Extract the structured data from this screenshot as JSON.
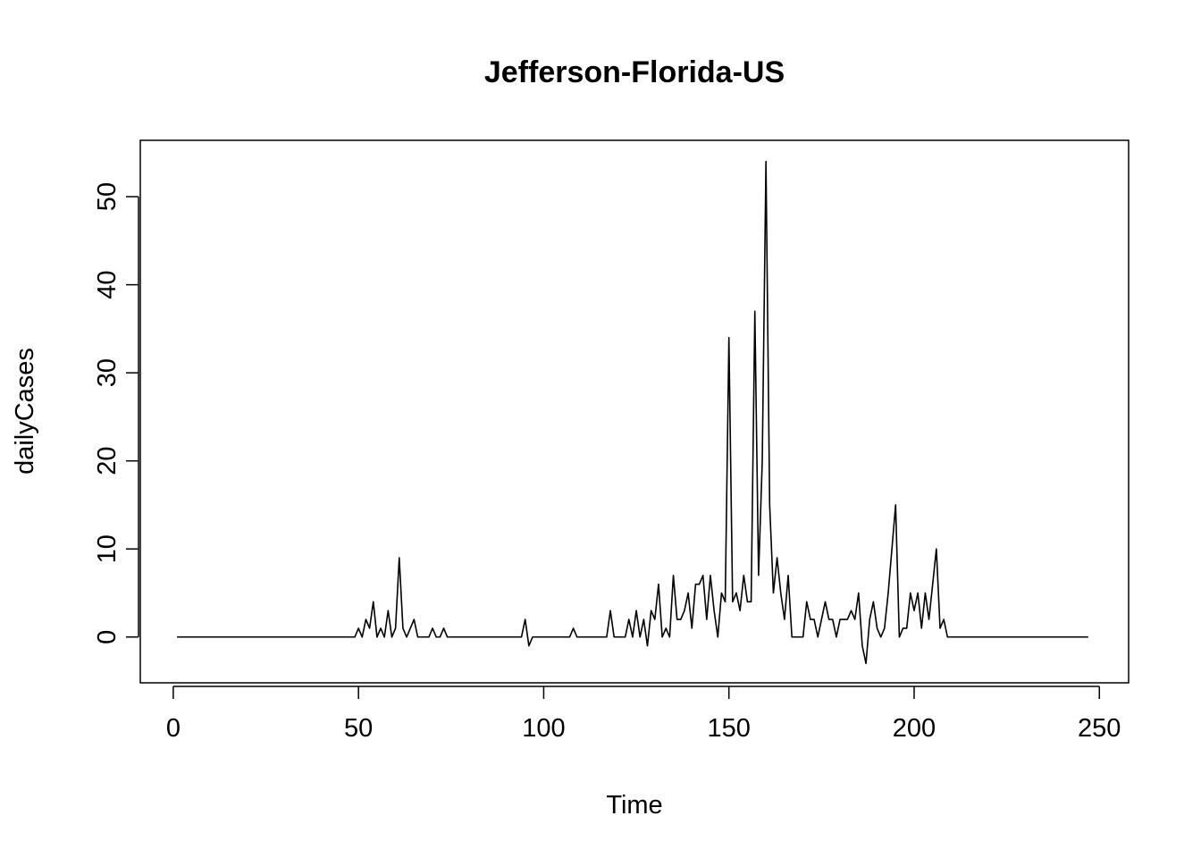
{
  "chart_data": {
    "type": "line",
    "title": "Jefferson-Florida-US",
    "xlabel": "Time",
    "ylabel": "dailyCases",
    "xlim": [
      -8.9,
      257.9
    ],
    "ylim": [
      -5.2,
      56.4
    ],
    "x_ticks": [
      0,
      50,
      100,
      150,
      200,
      250
    ],
    "y_ticks": [
      0,
      10,
      20,
      30,
      40,
      50
    ],
    "x_tick_labels": [
      "0",
      "50",
      "100",
      "150",
      "200",
      "250"
    ],
    "y_tick_labels": [
      "0",
      "10",
      "20",
      "30",
      "40",
      "50"
    ],
    "grid": false,
    "legend": "none",
    "line_color": "#000000",
    "series": [
      {
        "x_start": 1,
        "values": [
          0,
          0,
          0,
          0,
          0,
          0,
          0,
          0,
          0,
          0,
          0,
          0,
          0,
          0,
          0,
          0,
          0,
          0,
          0,
          0,
          0,
          0,
          0,
          0,
          0,
          0,
          0,
          0,
          0,
          0,
          0,
          0,
          0,
          0,
          0,
          0,
          0,
          0,
          0,
          0,
          0,
          0,
          0,
          0,
          0,
          0,
          0,
          0,
          0,
          1,
          0,
          2,
          1,
          4,
          0,
          1,
          0,
          3,
          0,
          1,
          9,
          1,
          0,
          1,
          2,
          0,
          0,
          0,
          0,
          1,
          0,
          0,
          1,
          0,
          0,
          0,
          0,
          0,
          0,
          0,
          0,
          0,
          0,
          0,
          0,
          0,
          0,
          0,
          0,
          0,
          0,
          0,
          0,
          0,
          2,
          -1,
          0,
          0,
          0,
          0,
          0,
          0,
          0,
          0,
          0,
          0,
          0,
          1,
          0,
          0,
          0,
          0,
          0,
          0,
          0,
          0,
          0,
          3,
          0,
          0,
          0,
          0,
          2,
          0,
          3,
          0,
          2,
          -1,
          3,
          2,
          6,
          0,
          1,
          0,
          7,
          2,
          2,
          3,
          5,
          1,
          6,
          6,
          7,
          2,
          7,
          3,
          0,
          5,
          4,
          34,
          4,
          5,
          3,
          7,
          4,
          4,
          37,
          7,
          20,
          54,
          15,
          5,
          9,
          5,
          2,
          7,
          0,
          0,
          0,
          0,
          4,
          2,
          2,
          0,
          2,
          4,
          2,
          2,
          0,
          2,
          2,
          2,
          3,
          2,
          5,
          -1,
          -3,
          2,
          4,
          1,
          0,
          1,
          5,
          10,
          15,
          0,
          1,
          1,
          5,
          3,
          5,
          1,
          5,
          2,
          6,
          10,
          1,
          2,
          0,
          0,
          0,
          0,
          0,
          0,
          0,
          0,
          0,
          0,
          0,
          0,
          0,
          0,
          0,
          0,
          0,
          0,
          0,
          0,
          0,
          0,
          0,
          0,
          0,
          0,
          0,
          0,
          0,
          0,
          0,
          0,
          0,
          0,
          0,
          0,
          0,
          0,
          0
        ]
      }
    ]
  }
}
